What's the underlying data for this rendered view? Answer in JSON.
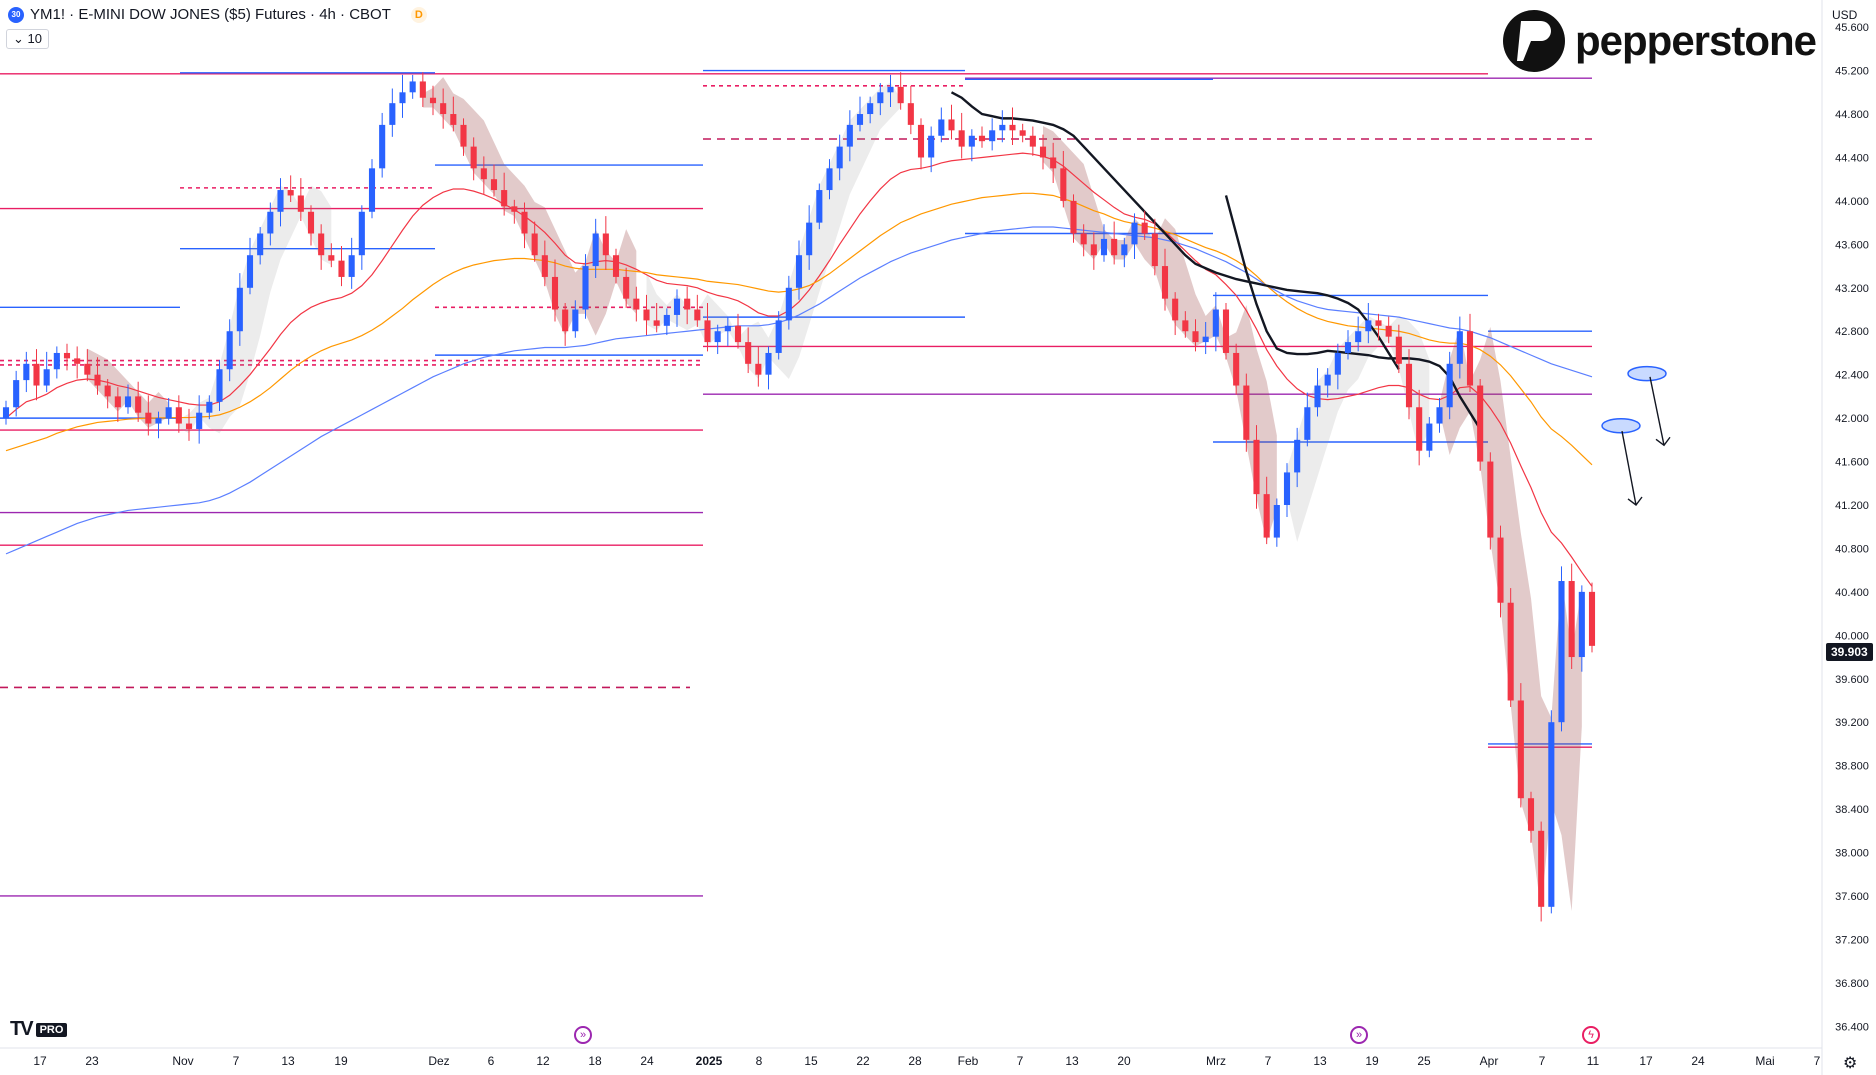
{
  "header": {
    "symbol_badge": "30",
    "title": "YM1! · E-MINI DOW JONES ($5) Futures · 4h · CBOT",
    "delay_badge": "D",
    "interval_value": "10"
  },
  "brand": {
    "logo_text": "pepperstone"
  },
  "price_axis": {
    "currency": "USD",
    "ticks": [
      "45.600",
      "45.200",
      "44.800",
      "44.400",
      "44.000",
      "43.600",
      "43.200",
      "42.800",
      "42.400",
      "42.000",
      "41.600",
      "41.200",
      "40.800",
      "40.400",
      "40.000",
      "39.600",
      "39.200",
      "38.800",
      "38.400",
      "38.000",
      "37.600",
      "37.200",
      "36.800",
      "36.400"
    ],
    "last_price": "39.903"
  },
  "time_axis": {
    "labels": [
      "17",
      "23",
      "Nov",
      "7",
      "13",
      "19",
      "Dez",
      "6",
      "12",
      "18",
      "24",
      "2025",
      "8",
      "15",
      "22",
      "28",
      "Feb",
      "7",
      "13",
      "20",
      "Mrz",
      "7",
      "13",
      "19",
      "25",
      "Apr",
      "7",
      "11",
      "17",
      "24",
      "Mai",
      "7"
    ]
  },
  "footer": {
    "tv_mark": "TV",
    "pro_badge": "PRO"
  },
  "colors": {
    "up": "#2962ff",
    "down": "#f23645",
    "ema_red": "#f23645",
    "ema_orange": "#ff9800",
    "ema_blue": "#5b7fff",
    "ema_black": "#131722",
    "level_pink": "#e91e63",
    "level_purple": "#9c27b0",
    "level_blue": "#2962ff"
  },
  "chart_data": {
    "type": "candlestick",
    "timeframe": "4h",
    "ylim": [
      36200,
      45850
    ],
    "closes": [
      42100,
      42350,
      42500,
      42300,
      42450,
      42600,
      42550,
      42500,
      42400,
      42300,
      42200,
      42100,
      42200,
      42050,
      41950,
      42000,
      42100,
      41950,
      41900,
      42050,
      42150,
      42450,
      42800,
      43200,
      43500,
      43700,
      43900,
      44100,
      44050,
      43900,
      43700,
      43500,
      43450,
      43300,
      43500,
      43900,
      44300,
      44700,
      44900,
      45000,
      45100,
      44950,
      44900,
      44800,
      44700,
      44500,
      44300,
      44200,
      44100,
      43950,
      43900,
      43700,
      43500,
      43300,
      43000,
      42800,
      43000,
      43400,
      43700,
      43500,
      43300,
      43100,
      43000,
      42900,
      42850,
      42950,
      43100,
      43000,
      42900,
      42700,
      42800,
      42850,
      42700,
      42500,
      42400,
      42600,
      42900,
      43200,
      43500,
      43800,
      44100,
      44300,
      44500,
      44700,
      44800,
      44900,
      45000,
      45050,
      44900,
      44700,
      44400,
      44600,
      44750,
      44650,
      44500,
      44600,
      44550,
      44650,
      44700,
      44650,
      44600,
      44500,
      44400,
      44300,
      44000,
      43700,
      43600,
      43500,
      43650,
      43500,
      43600,
      43800,
      43700,
      43400,
      43100,
      42900,
      42800,
      42700,
      42750,
      43000,
      42600,
      42300,
      41800,
      41300,
      40900,
      41200,
      41500,
      41800,
      42100,
      42300,
      42400,
      42600,
      42700,
      42800,
      42900,
      42850,
      42750,
      42500,
      42100,
      41700,
      41950,
      42100,
      42500,
      42800,
      42300,
      41600,
      40900,
      40300,
      39400,
      38500,
      38200,
      37500,
      39200,
      40500,
      39800,
      40400,
      39903
    ],
    "series": [
      {
        "type": "ema",
        "color": "red",
        "values": [
          42000,
          42080,
          42150,
          42180,
          42220,
          42280,
          42320,
          42350,
          42360,
          42350,
          42330,
          42300,
          42280,
          42250,
          42220,
          42190,
          42170,
          42150,
          42130,
          42120,
          42120,
          42150,
          42210,
          42300,
          42400,
          42520,
          42640,
          42770,
          42880,
          42960,
          43020,
          43060,
          43090,
          43110,
          43150,
          43220,
          43320,
          43450,
          43590,
          43730,
          43860,
          43960,
          44030,
          44080,
          44110,
          44110,
          44090,
          44060,
          44020,
          43970,
          43920,
          43860,
          43790,
          43710,
          43610,
          43500,
          43430,
          43420,
          43440,
          43450,
          43440,
          43410,
          43370,
          43320,
          43270,
          43240,
          43230,
          43220,
          43200,
          43160,
          43130,
          43110,
          43080,
          43030,
          42970,
          42940,
          42940,
          42990,
          43070,
          43180,
          43310,
          43450,
          43600,
          43740,
          43880,
          44000,
          44110,
          44200,
          44260,
          44290,
          44300,
          44320,
          44350,
          44370,
          44380,
          44390,
          44400,
          44410,
          44420,
          44430,
          44440,
          44430,
          44410,
          44380,
          44320,
          44240,
          44160,
          44080,
          44010,
          43940,
          43880,
          43850,
          43830,
          43790,
          43720,
          43630,
          43540,
          43450,
          43370,
          43320,
          43230,
          43130,
          42990,
          42820,
          42630,
          42480,
          42360,
          42270,
          42210,
          42180,
          42170,
          42180,
          42200,
          42220,
          42250,
          42280,
          42300,
          42300,
          42280,
          42220,
          42180,
          42170,
          42210,
          42280,
          42290,
          42210,
          42090,
          41950,
          41770,
          41560,
          41360,
          41130,
          40950,
          40850,
          40720,
          40580,
          40450
        ]
      },
      {
        "type": "ema",
        "color": "orange",
        "values": [
          41700,
          41730,
          41760,
          41790,
          41820,
          41860,
          41890,
          41920,
          41940,
          41960,
          41970,
          41980,
          41990,
          41995,
          42000,
          42000,
          42005,
          42005,
          42005,
          42010,
          42015,
          42030,
          42060,
          42100,
          42150,
          42210,
          42280,
          42360,
          42440,
          42510,
          42570,
          42620,
          42660,
          42690,
          42720,
          42760,
          42810,
          42870,
          42940,
          43010,
          43090,
          43160,
          43230,
          43290,
          43340,
          43380,
          43410,
          43430,
          43450,
          43460,
          43470,
          43470,
          43460,
          43450,
          43430,
          43400,
          43380,
          43370,
          43370,
          43370,
          43370,
          43360,
          43350,
          43340,
          43320,
          43310,
          43300,
          43290,
          43280,
          43260,
          43250,
          43240,
          43230,
          43210,
          43190,
          43170,
          43160,
          43170,
          43190,
          43220,
          43270,
          43330,
          43400,
          43470,
          43540,
          43610,
          43680,
          43740,
          43800,
          43840,
          43880,
          43910,
          43940,
          43970,
          43990,
          44010,
          44030,
          44040,
          44050,
          44060,
          44070,
          44070,
          44060,
          44050,
          44020,
          43990,
          43950,
          43910,
          43880,
          43840,
          43810,
          43790,
          43770,
          43750,
          43720,
          43690,
          43650,
          43610,
          43570,
          43540,
          43500,
          43450,
          43390,
          43310,
          43220,
          43140,
          43070,
          43010,
          42960,
          42920,
          42890,
          42870,
          42850,
          42840,
          42830,
          42820,
          42810,
          42800,
          42780,
          42750,
          42720,
          42700,
          42690,
          42690,
          42670,
          42630,
          42570,
          42490,
          42390,
          42270,
          42150,
          42010,
          41900,
          41830,
          41750,
          41660,
          41570
        ]
      },
      {
        "type": "ema",
        "color": "blue",
        "values": [
          40750,
          40790,
          40830,
          40870,
          40910,
          40950,
          40990,
          41030,
          41060,
          41090,
          41110,
          41130,
          41150,
          41160,
          41170,
          41180,
          41190,
          41200,
          41210,
          41220,
          41240,
          41270,
          41310,
          41360,
          41410,
          41470,
          41530,
          41590,
          41650,
          41710,
          41770,
          41830,
          41880,
          41930,
          41980,
          42030,
          42080,
          42130,
          42180,
          42230,
          42280,
          42330,
          42380,
          42420,
          42460,
          42500,
          42530,
          42560,
          42580,
          42600,
          42620,
          42630,
          42640,
          42650,
          42650,
          42650,
          42660,
          42670,
          42690,
          42710,
          42730,
          42740,
          42750,
          42760,
          42770,
          42780,
          42790,
          42800,
          42810,
          42820,
          42830,
          42840,
          42850,
          42850,
          42850,
          42860,
          42880,
          42910,
          42950,
          43000,
          43050,
          43110,
          43170,
          43230,
          43290,
          43340,
          43390,
          43440,
          43480,
          43520,
          43550,
          43580,
          43610,
          43640,
          43660,
          43680,
          43700,
          43720,
          43730,
          43740,
          43750,
          43760,
          43760,
          43760,
          43750,
          43740,
          43730,
          43720,
          43710,
          43700,
          43690,
          43680,
          43670,
          43660,
          43640,
          43620,
          43590,
          43560,
          43520,
          43480,
          43440,
          43390,
          43340,
          43280,
          43220,
          43170,
          43120,
          43080,
          43050,
          43020,
          43000,
          42990,
          42980,
          42970,
          42960,
          42950,
          42940,
          42930,
          42910,
          42890,
          42870,
          42850,
          42830,
          42820,
          42800,
          42770,
          42740,
          42700,
          42660,
          42620,
          42580,
          42540,
          42500,
          42470,
          42440,
          42410,
          42380
        ]
      }
    ],
    "ema_black": {
      "start_index": 93,
      "values": [
        45000,
        44950,
        44870,
        44800,
        44780,
        44760,
        44760,
        44750,
        44740,
        44720,
        44700,
        44660,
        44600,
        44500,
        44400,
        44300,
        44200,
        44100,
        44000,
        43900,
        43800,
        43700,
        43600,
        43500,
        43420,
        43380,
        43340,
        43310,
        43280,
        43260,
        43240,
        43220,
        43200,
        43180,
        43170,
        43160,
        43150,
        43130,
        43100,
        43060,
        43000,
        42880,
        42750,
        42600,
        42450
      ]
    },
    "ema_black_2": {
      "start_index": 120,
      "values": [
        44050,
        43700,
        43350,
        43050,
        42800,
        42640,
        42600,
        42590,
        42590,
        42600,
        42620,
        42610,
        42600,
        42590,
        42580,
        42560,
        42550,
        42550,
        42550,
        42540,
        42520,
        42480,
        42380,
        42200,
        42050,
        41900
      ]
    },
    "cloud_light": {
      "bands": [
        [
          43000,
          42500
        ],
        [
          43100,
          42550
        ],
        [
          43200,
          42600
        ],
        [
          43400,
          42700
        ],
        [
          43600,
          42900
        ],
        [
          44000,
          43300
        ],
        [
          44400,
          43700
        ],
        [
          44800,
          44100
        ],
        [
          45000,
          44400
        ],
        [
          45050,
          44600
        ]
      ]
    },
    "levels": [
      {
        "price": 45170,
        "color": "pink",
        "style": "solid",
        "x_from": 0,
        "x_to": 1488
      },
      {
        "price": 45130,
        "color": "purple",
        "style": "solid",
        "x_from": 965,
        "x_to": 1592
      },
      {
        "price": 45180,
        "color": "blue",
        "style": "solid",
        "x_from": 180,
        "x_to": 435
      },
      {
        "price": 45200,
        "color": "blue",
        "style": "solid",
        "x_from": 703,
        "x_to": 965
      },
      {
        "price": 45120,
        "color": "blue",
        "style": "solid",
        "x_from": 965,
        "x_to": 1213
      },
      {
        "price": 45060,
        "color": "pink",
        "style": "dashed",
        "x_from": 703,
        "x_to": 965
      },
      {
        "price": 44570,
        "color": "magenta",
        "style": "dashed",
        "x_from": 703,
        "x_to": 1592
      },
      {
        "price": 44330,
        "color": "blue",
        "style": "solid",
        "x_from": 435,
        "x_to": 703
      },
      {
        "price": 44120,
        "color": "pink",
        "style": "dashed",
        "x_from": 180,
        "x_to": 435
      },
      {
        "price": 43930,
        "color": "pink",
        "style": "solid",
        "x_from": 0,
        "x_to": 703
      },
      {
        "price": 43700,
        "color": "blue",
        "style": "solid",
        "x_from": 965,
        "x_to": 1213
      },
      {
        "price": 43560,
        "color": "blue",
        "style": "solid",
        "x_from": 180,
        "x_to": 435
      },
      {
        "price": 43130,
        "color": "blue",
        "style": "solid",
        "x_from": 1213,
        "x_to": 1488
      },
      {
        "price": 43020,
        "color": "blue",
        "style": "solid",
        "x_from": 0,
        "x_to": 180
      },
      {
        "price": 43020,
        "color": "pink",
        "style": "dashed",
        "x_from": 435,
        "x_to": 703
      },
      {
        "price": 42930,
        "color": "blue",
        "style": "solid",
        "x_from": 703,
        "x_to": 965
      },
      {
        "price": 42800,
        "color": "blue",
        "style": "solid",
        "x_from": 1488,
        "x_to": 1592
      },
      {
        "price": 42660,
        "color": "pink",
        "style": "solid",
        "x_from": 703,
        "x_to": 1592
      },
      {
        "price": 42580,
        "color": "blue",
        "style": "solid",
        "x_from": 435,
        "x_to": 703
      },
      {
        "price": 42530,
        "color": "pink",
        "style": "dashed",
        "x_from": 0,
        "x_to": 703
      },
      {
        "price": 42490,
        "color": "pink",
        "style": "dashed",
        "x_from": 0,
        "x_to": 703
      },
      {
        "price": 42220,
        "color": "purple",
        "style": "solid",
        "x_from": 703,
        "x_to": 1592
      },
      {
        "price": 42000,
        "color": "blue",
        "style": "solid",
        "x_from": 0,
        "x_to": 180
      },
      {
        "price": 41890,
        "color": "pink",
        "style": "solid",
        "x_from": 0,
        "x_to": 703
      },
      {
        "price": 41780,
        "color": "blue",
        "style": "solid",
        "x_from": 1213,
        "x_to": 1488
      },
      {
        "price": 41130,
        "color": "purple",
        "style": "solid",
        "x_from": 0,
        "x_to": 703
      },
      {
        "price": 40830,
        "color": "pink",
        "style": "solid",
        "x_from": 0,
        "x_to": 703
      },
      {
        "price": 39520,
        "color": "magenta",
        "style": "dashed",
        "x_from": 0,
        "x_to": 690
      },
      {
        "price": 39000,
        "color": "blue",
        "style": "solid",
        "x_from": 1488,
        "x_to": 1592
      },
      {
        "price": 38970,
        "color": "pink",
        "style": "solid",
        "x_from": 1488,
        "x_to": 1592
      },
      {
        "price": 37600,
        "color": "purple",
        "style": "solid",
        "x_from": 0,
        "x_to": 703
      }
    ],
    "annotations": [
      {
        "type": "ellipse",
        "price": 42410,
        "x": 1647
      },
      {
        "type": "ellipse",
        "price": 41930,
        "x": 1621
      },
      {
        "type": "arrow",
        "from_price": 42380,
        "to_price": 41750,
        "from_x": 1650,
        "to_x": 1664
      },
      {
        "type": "arrow",
        "from_price": 41880,
        "to_price": 41200,
        "from_x": 1622,
        "to_x": 1636
      }
    ]
  }
}
